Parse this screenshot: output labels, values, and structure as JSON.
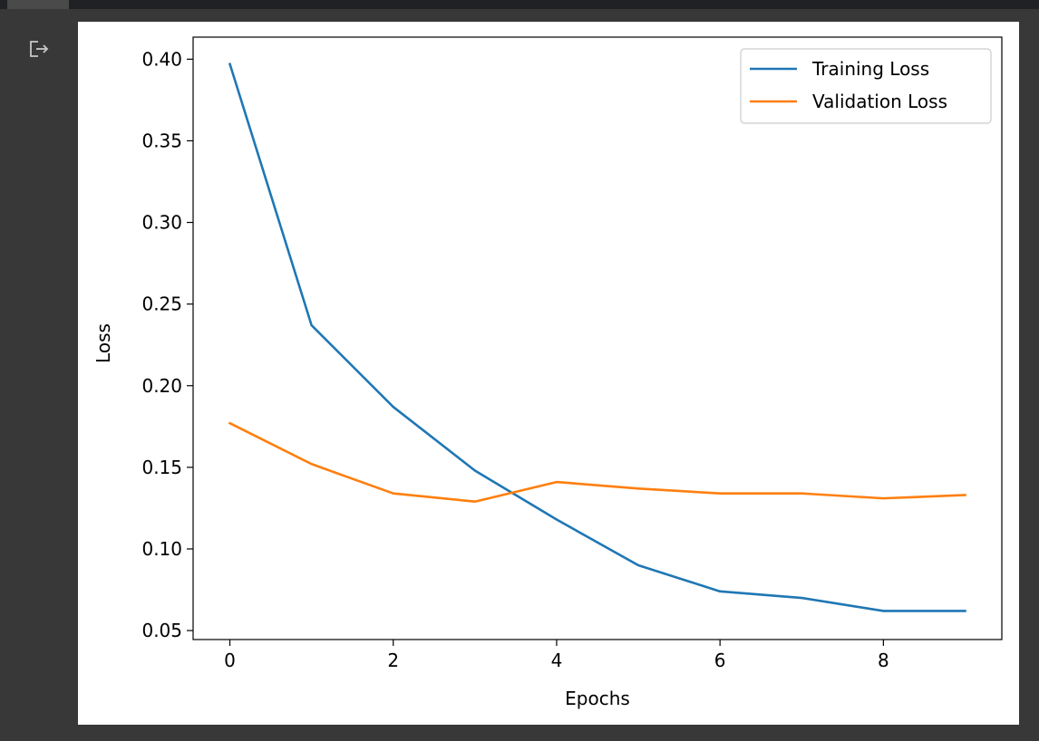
{
  "output": {
    "icon": "output-redirect-icon"
  },
  "chart_data": {
    "type": "line",
    "xlabel": "Epochs",
    "ylabel": "Loss",
    "xlim": [
      -0.45,
      9.45
    ],
    "ylim": [
      0.0445,
      0.4135
    ],
    "xticks": [
      0,
      2,
      4,
      6,
      8
    ],
    "xtick_labels": [
      "0",
      "2",
      "4",
      "6",
      "8"
    ],
    "yticks": [
      0.05,
      0.1,
      0.15,
      0.2,
      0.25,
      0.3,
      0.35,
      0.4
    ],
    "ytick_labels": [
      "0.05",
      "0.10",
      "0.15",
      "0.20",
      "0.25",
      "0.30",
      "0.35",
      "0.40"
    ],
    "x": [
      0,
      1,
      2,
      3,
      4,
      5,
      6,
      7,
      8,
      9
    ],
    "legend_position": "top-right",
    "grid": false,
    "series": [
      {
        "name": "Training Loss",
        "color": "#1f77b4",
        "values": [
          0.397,
          0.237,
          0.187,
          0.148,
          0.118,
          0.09,
          0.074,
          0.07,
          0.062,
          0.062
        ]
      },
      {
        "name": "Validation Loss",
        "color": "#ff7f0e",
        "values": [
          0.177,
          0.152,
          0.134,
          0.129,
          0.141,
          0.137,
          0.134,
          0.134,
          0.131,
          0.133
        ]
      }
    ]
  }
}
